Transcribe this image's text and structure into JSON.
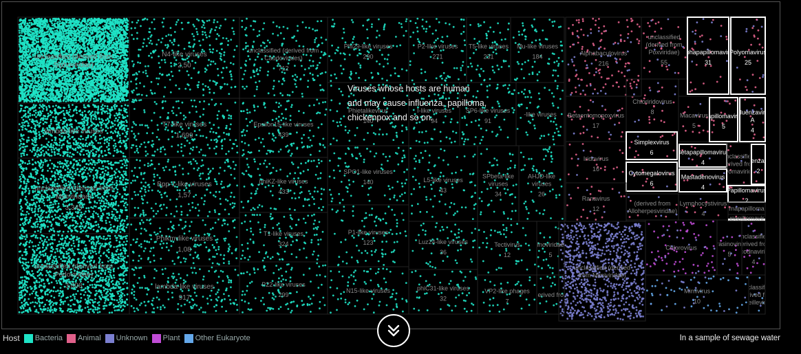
{
  "story_lines": [
    "Viruses whose hosts are human",
    "and may cause influenza, papilloma,",
    "chickenpox and so on."
  ],
  "legend": {
    "title": "Host",
    "items": [
      {
        "label": "Bacteria",
        "color": "#1fe3c6"
      },
      {
        "label": "Animal",
        "color": "#e0608a"
      },
      {
        "label": "Unknown",
        "color": "#7b7fd0"
      },
      {
        "label": "Plant",
        "color": "#c04cd6"
      },
      {
        "label": "Other Eukaryote",
        "color": "#64a8ea"
      }
    ]
  },
  "note": "In a sample of sewage water",
  "scroll_icon": "double-chevron-down-icon",
  "chart_data": {
    "type": "treemap",
    "cells": [
      {
        "name": "unclassified (derived from Siphoviridae)",
        "count": "",
        "host": "Bacteria"
      },
      {
        "name": "N4-like viruses",
        "count": "2,50",
        "host": "Bacteria"
      },
      {
        "name": "unclassified (derived from Caudovirales)",
        "count": "712",
        "host": "Bacteria"
      },
      {
        "name": "Phi29-like viruses",
        "count": "290",
        "host": "Bacteria"
      },
      {
        "name": "P2-like viruses",
        "count": "271",
        "host": "Bacteria"
      },
      {
        "name": "T5-like viruses",
        "count": "231",
        "host": "Bacteria"
      },
      {
        "name": "Mu-like viruses",
        "count": "184",
        "host": "Bacteria"
      },
      {
        "name": "T7-like viruses",
        "count": "1,699",
        "host": "Bacteria"
      },
      {
        "name": "Epsilon15-like viruses",
        "count": "439",
        "host": "Bacteria"
      },
      {
        "name": "Phietalikevirus",
        "count": "140",
        "host": "Bacteria"
      },
      {
        "name": "I-like viruses",
        "count": "94",
        "host": "Bacteria"
      },
      {
        "name": "SP6-like viruses",
        "count": "91",
        "host": "Bacteria"
      },
      {
        "name": "-like viruses",
        "count": "",
        "host": "Bacteria"
      },
      {
        "name": "lambda-like viruses",
        "count": "",
        "host": "Bacteria"
      },
      {
        "name": "Bpp-1-like viruses",
        "count": "1,57",
        "host": "Bacteria"
      },
      {
        "name": "phiKZ-like viruses",
        "count": "433",
        "host": "Bacteria"
      },
      {
        "name": "SPO1-like viruses",
        "count": "140",
        "host": "Bacteria"
      },
      {
        "name": "L5-like viruses",
        "count": "43",
        "host": "Bacteria"
      },
      {
        "name": "SPbeta-like viruses",
        "count": "34",
        "host": "Bacteria"
      },
      {
        "name": "AHJD-like viruses",
        "count": "26",
        "host": "Bacteria"
      },
      {
        "name": "unclassified (derived from Myoviridae)",
        "count": "3,345",
        "host": "Bacteria"
      },
      {
        "name": "Phikmvlike viruses",
        "count": "1,08",
        "host": "Bacteria"
      },
      {
        "name": "T1-like viruses",
        "count": "324",
        "host": "Bacteria"
      },
      {
        "name": "P1-like viruses",
        "count": "123",
        "host": "Bacteria"
      },
      {
        "name": "Luz24-like viruses",
        "count": "36",
        "host": "Bacteria"
      },
      {
        "name": "Tectivirus",
        "count": "12",
        "host": "Bacteria"
      },
      {
        "name": "Inoviridae",
        "count": "5",
        "host": "Bacteria"
      },
      {
        "name": "unclassified (derived from Podoviridae)",
        "count": "3,608",
        "host": "Bacteria"
      },
      {
        "name": "lambda-like viruses",
        "count": "917",
        "host": "Bacteria"
      },
      {
        "name": "P22-like viruses",
        "count": "299",
        "host": "Bacteria"
      },
      {
        "name": "N15-like viruses",
        "count": "",
        "host": "Bacteria"
      },
      {
        "name": "phiC31-like viruses",
        "count": "32",
        "host": "Bacteria"
      },
      {
        "name": "VP2-like phages",
        "count": "7",
        "host": "Bacteria"
      },
      {
        "name": "(derived from",
        "count": "",
        "host": "Bacteria"
      },
      {
        "name": "Alphabaculovirus",
        "count": "216",
        "host": "Animal"
      },
      {
        "name": "unclassified (derived from Poxviridae)",
        "count": "55",
        "host": "Animal"
      },
      {
        "name": "Alphapapillomavirus",
        "count": "31",
        "host": "Animal"
      },
      {
        "name": "Polyomavirus",
        "count": "25",
        "host": "Animal"
      },
      {
        "name": "Betaentomopoxvirus",
        "count": "17",
        "host": "Animal"
      },
      {
        "name": "Chloriridovirus",
        "count": "8",
        "host": "Animal"
      },
      {
        "name": "Macavirus",
        "count": "5",
        "host": "Animal"
      },
      {
        "name": "Papillomavirus",
        "count": "5",
        "host": "Animal"
      },
      {
        "name": "Influenzavirus A",
        "count": "4",
        "host": "Animal"
      },
      {
        "name": "Iridovirus",
        "count": "16",
        "host": "Animal"
      },
      {
        "name": "Simplexvirus",
        "count": "6",
        "host": "Animal"
      },
      {
        "name": "Betapapillomavirus",
        "count": "4",
        "host": "Animal"
      },
      {
        "name": "unclassified (derived from Polyomaviridae)",
        "count": "",
        "host": "Animal"
      },
      {
        "name": "Influenzavirus",
        "count": "2",
        "host": "Animal"
      },
      {
        "name": "Cytomegalovirus",
        "count": "6",
        "host": "Animal"
      },
      {
        "name": "Mastadenovirus",
        "count": "4",
        "host": "Animal"
      },
      {
        "name": "Ranavirus",
        "count": "12",
        "host": "Animal"
      },
      {
        "name": "(derived from Alloherpesviridae)",
        "count": "",
        "host": "Animal"
      },
      {
        "name": "Lymphocystivirus",
        "count": "4",
        "host": "Animal"
      },
      {
        "name": "Papillomavirus",
        "count": "2",
        "host": "Animal"
      },
      {
        "name": "Gammapapillomavirus",
        "count": "",
        "host": "Animal"
      },
      {
        "name": "Mupapillomavirus",
        "count": "",
        "host": "Animal"
      },
      {
        "name": "unclassified (derived from Mimiviridae)",
        "count": "",
        "host": "Unknown"
      },
      {
        "name": "Chlorovirus",
        "count": "",
        "host": "Plant"
      },
      {
        "name": "Prasinovirus",
        "count": "5",
        "host": "Plant"
      },
      {
        "name": "unclassified (derived from Phycodnaviridae)",
        "count": "4",
        "host": "Plant"
      },
      {
        "name": "Mimivirus",
        "count": "10",
        "host": "Other Eukaryote"
      },
      {
        "name": "unclassified (derived from Marseilleviridae)",
        "count": "",
        "host": "Other Eukaryote"
      }
    ]
  }
}
